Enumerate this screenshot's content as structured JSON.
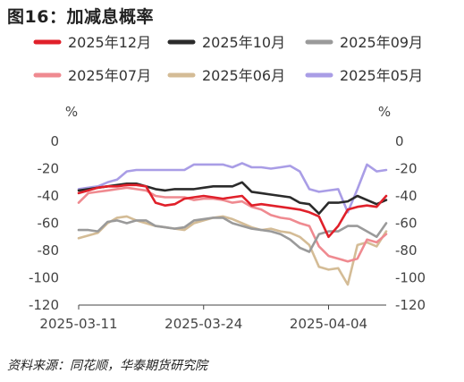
{
  "title": "图16：加减息概率",
  "source": "资料来源：同花顺，华泰期货研究院",
  "chart_data": {
    "type": "line",
    "unit_left": "%",
    "unit_right": "%",
    "ylim": [
      -120,
      0
    ],
    "y_ticks": [
      0,
      -20,
      -40,
      -60,
      -80,
      -100,
      -120
    ],
    "x_tick_labels": [
      "2025-03-11",
      "2025-03-24",
      "2025-04-04"
    ],
    "x_tick_index": [
      0,
      13,
      26
    ],
    "n_points": 33,
    "legend_position": "top",
    "series": [
      {
        "name": "2025年12月",
        "color": "#e0202a",
        "values": [
          -38,
          -36,
          -34,
          -33,
          -33,
          -32,
          -32,
          -33,
          -45,
          -47,
          -46,
          -42,
          -41,
          -40,
          -41,
          -42,
          -41,
          -40,
          -47,
          -46,
          -47,
          -48,
          -49,
          -50,
          -52,
          -55,
          -70,
          -62,
          -50,
          -48,
          -47,
          -48,
          -40
        ]
      },
      {
        "name": "2025年10月",
        "color": "#2b2b2b",
        "values": [
          -36,
          -35,
          -34,
          -33,
          -32,
          -31,
          -31,
          -33,
          -35,
          -36,
          -35,
          -35,
          -35,
          -34,
          -33,
          -33,
          -33,
          -30,
          -37,
          -38,
          -39,
          -40,
          -41,
          -45,
          -46,
          -53,
          -45,
          -45,
          -44,
          -40,
          -43,
          -46,
          -43
        ]
      },
      {
        "name": "2025年09月",
        "color": "#9a9a9a",
        "values": [
          -65,
          -65,
          -66,
          -59,
          -58,
          -60,
          -58,
          -58,
          -62,
          -63,
          -64,
          -63,
          -58,
          -57,
          -56,
          -56,
          -60,
          -62,
          -64,
          -65,
          -66,
          -68,
          -72,
          -78,
          -81,
          -68,
          -66,
          -66,
          -62,
          -62,
          -66,
          -70,
          -60
        ]
      },
      {
        "name": "2025年07月",
        "color": "#ef8a90",
        "values": [
          -45,
          -38,
          -37,
          -36,
          -35,
          -34,
          -35,
          -36,
          -40,
          -41,
          -41,
          -41,
          -43,
          -42,
          -42,
          -43,
          -45,
          -44,
          -48,
          -50,
          -54,
          -56,
          -57,
          -60,
          -62,
          -77,
          -84,
          -86,
          -88,
          -86,
          -72,
          -74,
          -68
        ]
      },
      {
        "name": "2025年06月",
        "color": "#d4bc96",
        "values": [
          -71,
          -69,
          -67,
          -60,
          -56,
          -55,
          -58,
          -60,
          -62,
          -63,
          -64,
          -65,
          -60,
          -58,
          -56,
          -55,
          -57,
          -60,
          -63,
          -65,
          -64,
          -66,
          -67,
          -70,
          -76,
          -92,
          -94,
          -93,
          -105,
          -76,
          -74,
          -77,
          -66
        ]
      },
      {
        "name": "2025年05月",
        "color": "#a99de6",
        "values": [
          -35,
          -34,
          -33,
          -30,
          -28,
          -22,
          -21,
          -21,
          -21,
          -21,
          -21,
          -21,
          -17,
          -17,
          -17,
          -17,
          -19,
          -16,
          -19,
          -19,
          -20,
          -19,
          -18,
          -22,
          -35,
          -37,
          -36,
          -35,
          -52,
          -35,
          -17,
          -22,
          -21
        ]
      }
    ]
  }
}
